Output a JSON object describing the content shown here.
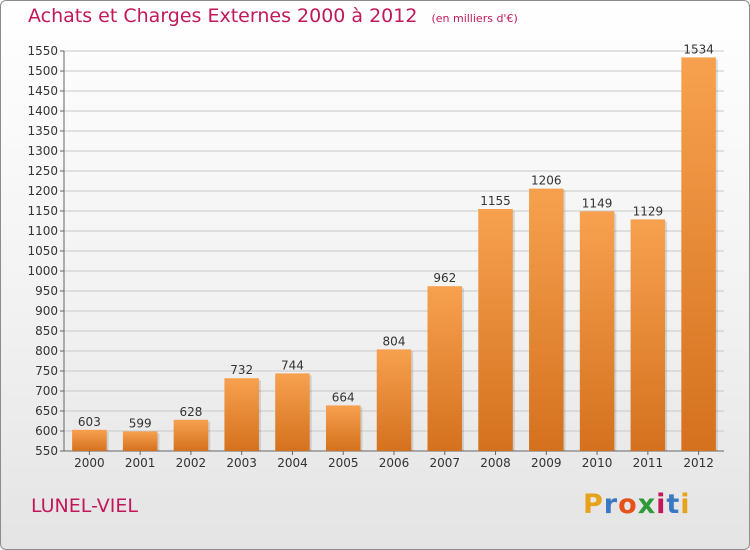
{
  "header": {
    "title": "Achats et Charges Externes 2000 à 2012",
    "subtitle": "(en milliers d'€)"
  },
  "place": "LUNEL-VIEL",
  "logo": {
    "letters": [
      "P",
      "r",
      "o",
      "x",
      "i",
      "t",
      "i"
    ],
    "colors": [
      "#e5a21a",
      "#3a78c2",
      "#e5531a",
      "#2e9a3a",
      "#c2185b",
      "#3a78c2",
      "#e5a21a"
    ]
  },
  "colors": {
    "bar_top": "#f7a14f",
    "bar_bottom": "#d4711e",
    "axis_text": "#333333",
    "grid": "#c8c8c8"
  },
  "chart_data": {
    "type": "bar",
    "categories": [
      "2000",
      "2001",
      "2002",
      "2003",
      "2004",
      "2005",
      "2006",
      "2007",
      "2008",
      "2009",
      "2010",
      "2011",
      "2012"
    ],
    "values": [
      603,
      599,
      628,
      732,
      744,
      664,
      804,
      962,
      1155,
      1206,
      1149,
      1129,
      1534
    ],
    "ylim": [
      550,
      1550
    ],
    "yticks": [
      550,
      600,
      650,
      700,
      750,
      800,
      850,
      900,
      950,
      1000,
      1050,
      1100,
      1150,
      1200,
      1250,
      1300,
      1350,
      1400,
      1450,
      1500,
      1550
    ],
    "grid": true,
    "data_labels": true
  }
}
